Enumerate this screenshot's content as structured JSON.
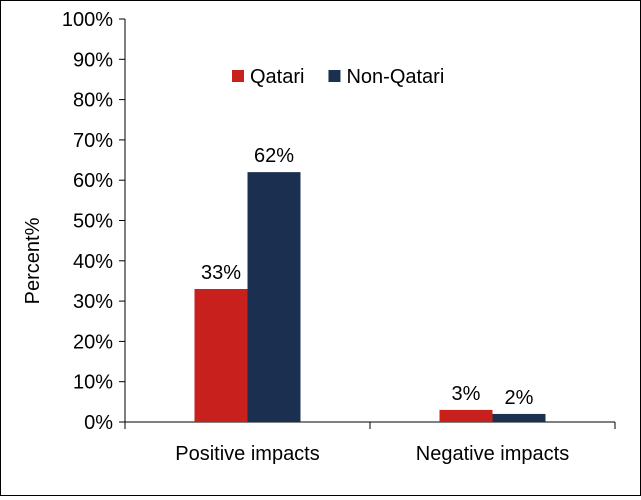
{
  "chart_data": {
    "type": "bar",
    "title": "",
    "xlabel": "",
    "ylabel": "Percent%",
    "ylim": [
      0,
      100
    ],
    "yticks": [
      "0%",
      "10%",
      "20%",
      "30%",
      "40%",
      "50%",
      "60%",
      "70%",
      "80%",
      "90%",
      "100%"
    ],
    "categories": [
      "Positive impacts",
      "Negative impacts"
    ],
    "series": [
      {
        "name": "Qatari",
        "color": "#c8201d",
        "values": [
          33,
          3
        ],
        "labels": [
          "33%",
          "3%"
        ]
      },
      {
        "name": "Non-Qatari",
        "color": "#1b3050",
        "values": [
          62,
          2
        ],
        "labels": [
          "62%",
          "2%"
        ]
      }
    ],
    "legend": "top-center",
    "grid": false
  }
}
